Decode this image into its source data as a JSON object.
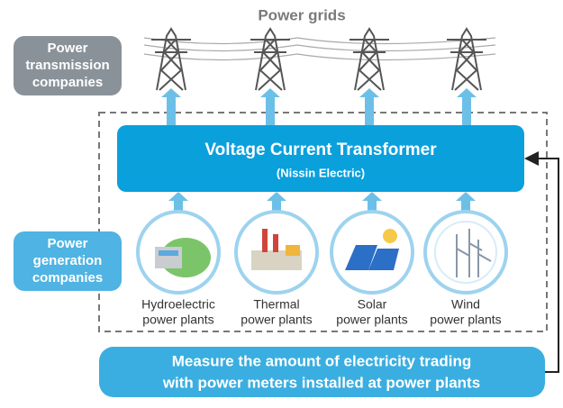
{
  "diagram": {
    "title": "Power grids",
    "transmission_label": [
      "Power",
      "transmission",
      "companies"
    ],
    "generation_label": [
      "Power",
      "generation",
      "companies"
    ],
    "transformer": {
      "title": "Voltage Current Transformer",
      "subtitle": "(Nissin Electric)"
    },
    "plants": [
      {
        "label": [
          "Hydroelectric",
          "power plants"
        ]
      },
      {
        "label": [
          "Thermal",
          "power plants"
        ]
      },
      {
        "label": [
          "Solar",
          "power plants"
        ]
      },
      {
        "label": [
          "Wind",
          "power plants"
        ]
      }
    ],
    "note": [
      "Measure the amount of electricity trading",
      "with power meters installed at power plants"
    ]
  }
}
